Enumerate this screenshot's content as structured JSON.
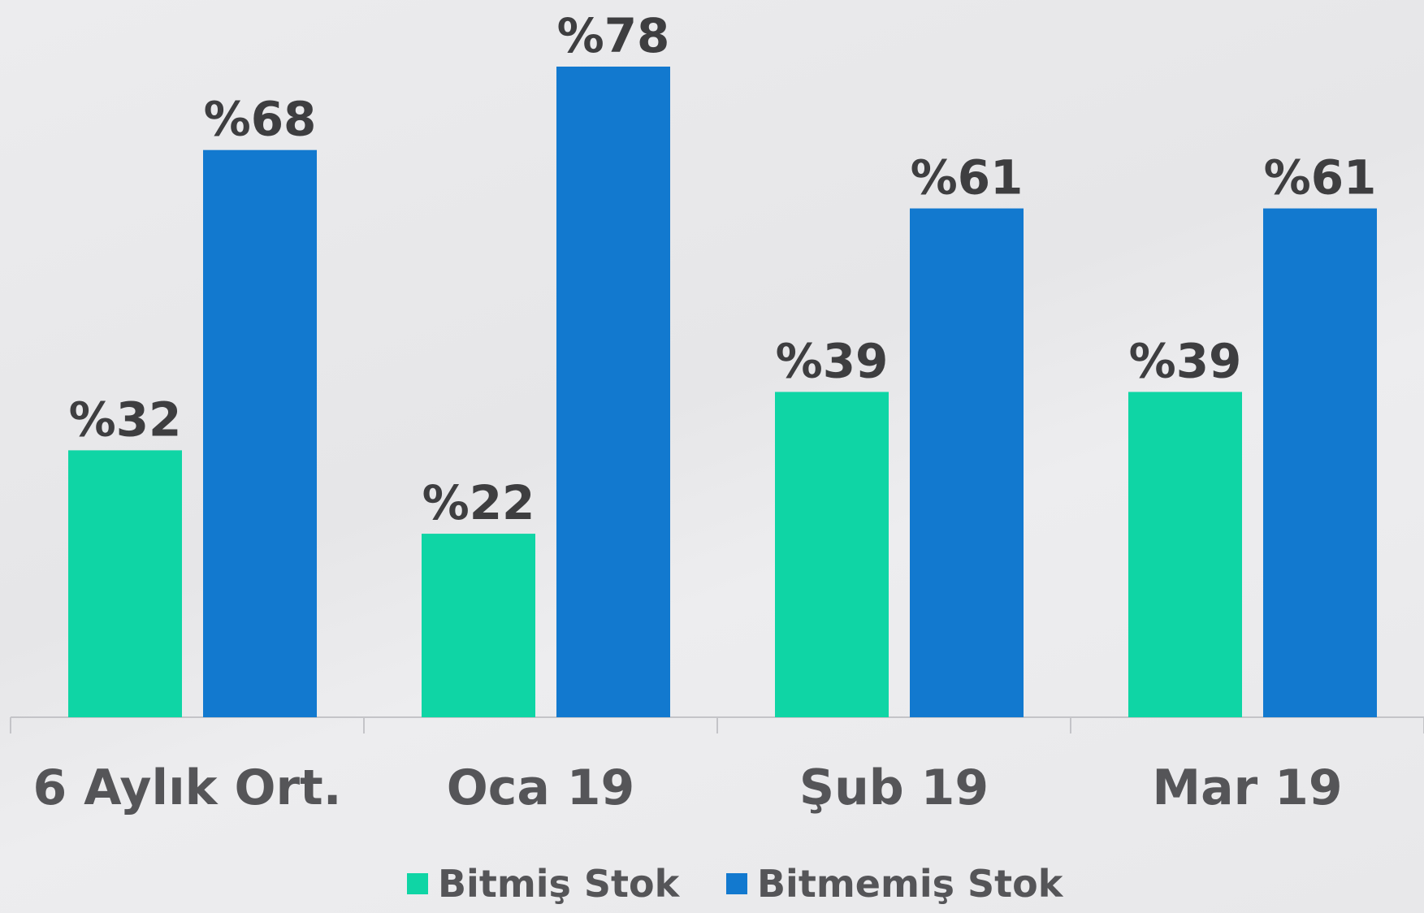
{
  "chart_data": {
    "type": "bar",
    "categories": [
      "6 Aylık Ort.",
      "Oca 19",
      "Şub 19",
      "Mar 19"
    ],
    "series": [
      {
        "name": "Bitmiş Stok",
        "color": "#0fd5a5",
        "values": [
          32,
          22,
          39,
          39
        ],
        "value_labels": [
          "%32",
          "%22",
          "%39",
          "%39"
        ]
      },
      {
        "name": "Bitmemiş Stok",
        "color": "#1279cf",
        "values": [
          68,
          78,
          61,
          61
        ],
        "value_labels": [
          "%68",
          "%78",
          "%61",
          "%61"
        ]
      }
    ]
  }
}
